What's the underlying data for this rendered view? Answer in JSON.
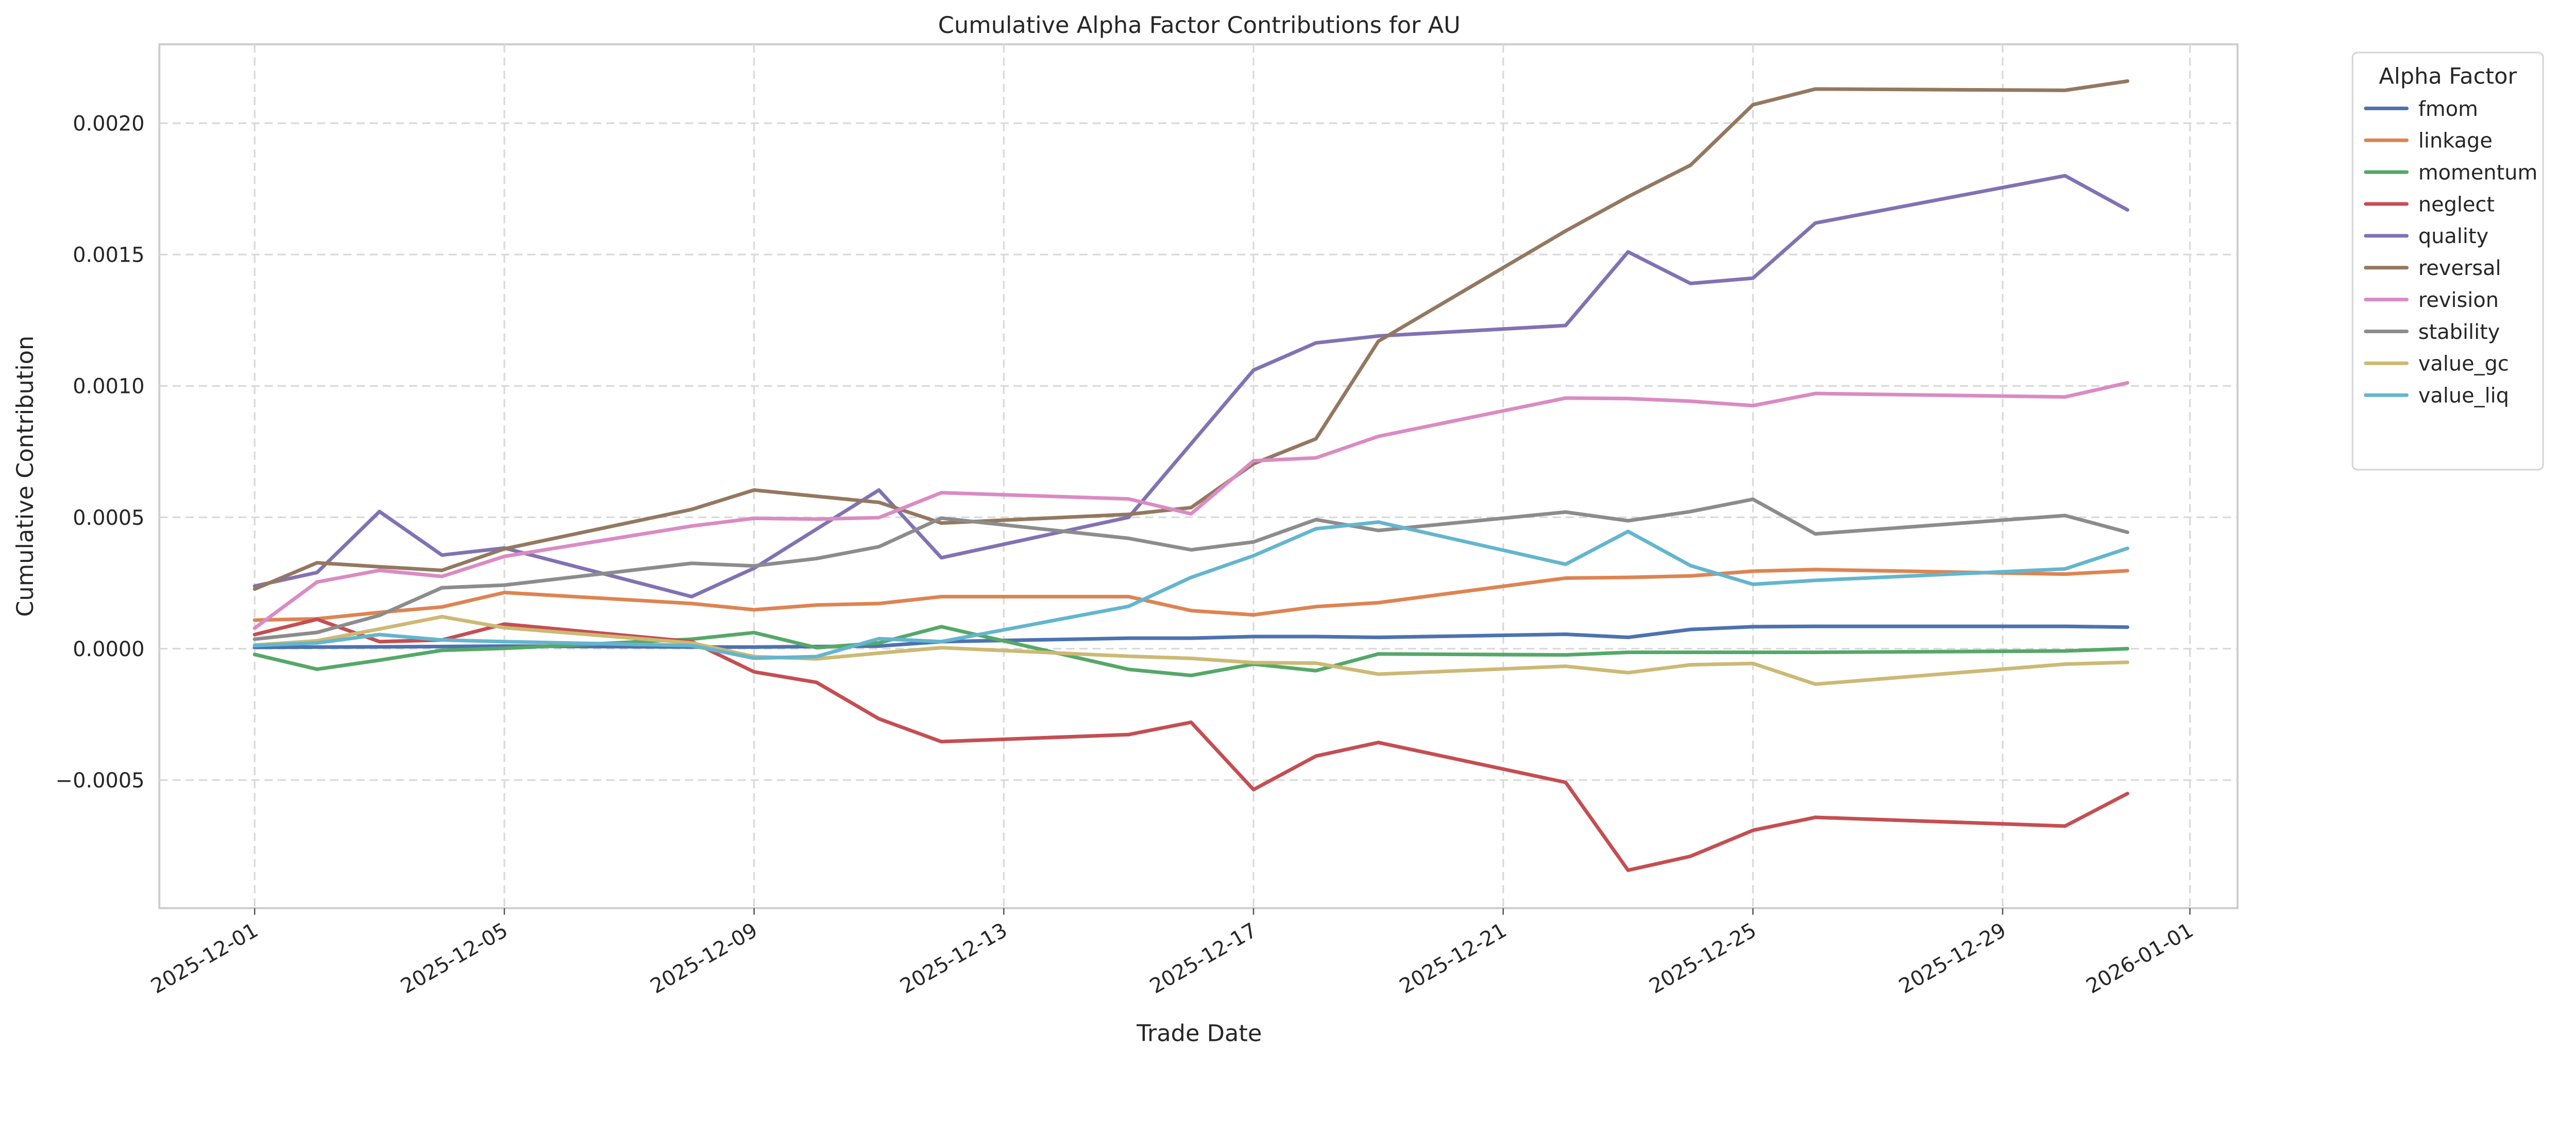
{
  "chart_data": {
    "type": "line",
    "title": "Cumulative Alpha Factor Contributions for AU",
    "xlabel": "Trade Date",
    "ylabel": "Cumulative Contribution",
    "ylim": [
      -0.00098,
      0.00232
    ],
    "xlim": [
      "2025-11-29",
      "2026-01-01"
    ],
    "grid": true,
    "x_ticks": [
      "2025-12-01",
      "2025-12-05",
      "2025-12-09",
      "2025-12-13",
      "2025-12-17",
      "2025-12-21",
      "2025-12-25",
      "2025-12-29",
      "2026-01-01"
    ],
    "y_ticks": [
      -0.0005,
      0.0,
      0.0005,
      0.001,
      0.0015,
      0.002
    ],
    "y_tick_labels": [
      "−0.0005",
      "0.0000",
      "0.0005",
      "0.0010",
      "0.0015",
      "0.0020"
    ],
    "legend": {
      "title": "Alpha Factor",
      "placement": "outside-top-right"
    },
    "x": [
      "2025-12-01",
      "2025-12-02",
      "2025-12-03",
      "2025-12-04",
      "2025-12-05",
      "2025-12-08",
      "2025-12-09",
      "2025-12-10",
      "2025-12-11",
      "2025-12-12",
      "2025-12-15",
      "2025-12-16",
      "2025-12-17",
      "2025-12-18",
      "2025-12-19",
      "2025-12-22",
      "2025-12-23",
      "2025-12-24",
      "2025-12-25",
      "2025-12-26",
      "2025-12-30",
      "2025-12-31"
    ],
    "series": [
      {
        "name": "fmom",
        "color": "#4c72b0",
        "values": [
          5e-06,
          6e-06,
          7e-06,
          8e-06,
          1e-05,
          6e-06,
          6e-06,
          8e-06,
          1e-05,
          2.7e-05,
          4e-05,
          4e-05,
          4.6e-05,
          4.6e-05,
          4.3e-05,
          5.5e-05,
          4.3e-05,
          7.3e-05,
          8.4e-05,
          8.5e-05,
          8.5e-05,
          8.2e-05
        ]
      },
      {
        "name": "linkage",
        "color": "#dd8452",
        "values": [
          0.000109,
          0.000114,
          0.000138,
          0.000159,
          0.000214,
          0.000172,
          0.000148,
          0.000166,
          0.000172,
          0.000198,
          0.000198,
          0.000145,
          0.000129,
          0.00016,
          0.000175,
          0.000269,
          0.000271,
          0.000277,
          0.000295,
          0.000301,
          0.000284,
          0.000297
        ]
      },
      {
        "name": "momentum",
        "color": "#55a868",
        "values": [
          -2.2e-05,
          -7.8e-05,
          -4.4e-05,
          -6e-06,
          1e-06,
          3.6e-05,
          6.1e-05,
          4e-06,
          2.2e-05,
          8.4e-05,
          -7.9e-05,
          -0.000102,
          -5.9e-05,
          -8.4e-05,
          -2e-05,
          -2.4e-05,
          -1.4e-05,
          -1.4e-05,
          -1.4e-05,
          -1.4e-05,
          -9e-06,
          0.0
        ]
      },
      {
        "name": "neglect",
        "color": "#c44e52",
        "values": [
          5.4e-05,
          0.000112,
          2.7e-05,
          3.3e-05,
          9.4e-05,
          2.7e-05,
          -8.8e-05,
          -0.000128,
          -0.000267,
          -0.000354,
          -0.000327,
          -0.00028,
          -0.000536,
          -0.000409,
          -0.000357,
          -0.000509,
          -0.000843,
          -0.00079,
          -0.000691,
          -0.000642,
          -0.000675,
          -0.000551
        ]
      },
      {
        "name": "quality",
        "color": "#8172b3",
        "values": [
          0.000238,
          0.00029,
          0.000522,
          0.000356,
          0.000383,
          0.000198,
          0.000306,
          0.000455,
          0.000604,
          0.000346,
          0.0005,
          0.00078,
          0.00106,
          0.001164,
          0.00119,
          0.00123,
          0.00151,
          0.00139,
          0.00141,
          0.00162,
          0.0018,
          0.00167
        ]
      },
      {
        "name": "reversal",
        "color": "#937860",
        "values": [
          0.000227,
          0.000327,
          0.000312,
          0.000298,
          0.00038,
          0.00053,
          0.000604,
          0.00058,
          0.000557,
          0.000478,
          0.000511,
          0.000537,
          0.000704,
          0.000799,
          0.00117,
          0.00159,
          0.00172,
          0.00184,
          0.00207,
          0.00213,
          0.002125,
          0.00216
        ]
      },
      {
        "name": "revision",
        "color": "#da8bc3",
        "values": [
          7.8e-05,
          0.000254,
          0.000298,
          0.000275,
          0.000351,
          0.000467,
          0.000496,
          0.000493,
          0.000499,
          0.000594,
          0.00057,
          0.000513,
          0.000715,
          0.000726,
          0.000808,
          0.000954,
          0.000952,
          0.000942,
          0.000925,
          0.000971,
          0.000958,
          0.001012
        ]
      },
      {
        "name": "stability",
        "color": "#8c8c8c",
        "values": [
          3.6e-05,
          6.2e-05,
          0.000127,
          0.000232,
          0.000242,
          0.000325,
          0.000315,
          0.000343,
          0.000388,
          0.000497,
          0.00042,
          0.000376,
          0.000406,
          0.000491,
          0.00045,
          0.00052,
          0.000487,
          0.000522,
          0.000569,
          0.000437,
          0.000507,
          0.000443
        ]
      },
      {
        "name": "value_gc",
        "color": "#ccb974",
        "values": [
          1.4e-05,
          3e-05,
          7.5e-05,
          0.000122,
          8e-05,
          2.2e-05,
          -3e-05,
          -3.9e-05,
          -1.7e-05,
          4e-06,
          -2.9e-05,
          -3.7e-05,
          -5.3e-05,
          -5.5e-05,
          -9.7e-05,
          -6.7e-05,
          -9.1e-05,
          -6.1e-05,
          -5.6e-05,
          -0.000135,
          -5.9e-05,
          -5.2e-05
        ]
      },
      {
        "name": "value_liq",
        "color": "#64b5cd",
        "values": [
          1.2e-05,
          2.2e-05,
          5.4e-05,
          3.3e-05,
          2.7e-05,
          1.2e-05,
          -3.6e-05,
          -3e-05,
          3.8e-05,
          2.7e-05,
          0.000161,
          0.000271,
          0.000354,
          0.000456,
          0.000482,
          0.000321,
          0.000446,
          0.000316,
          0.000245,
          0.00026,
          0.000304,
          0.000382
        ]
      }
    ]
  }
}
